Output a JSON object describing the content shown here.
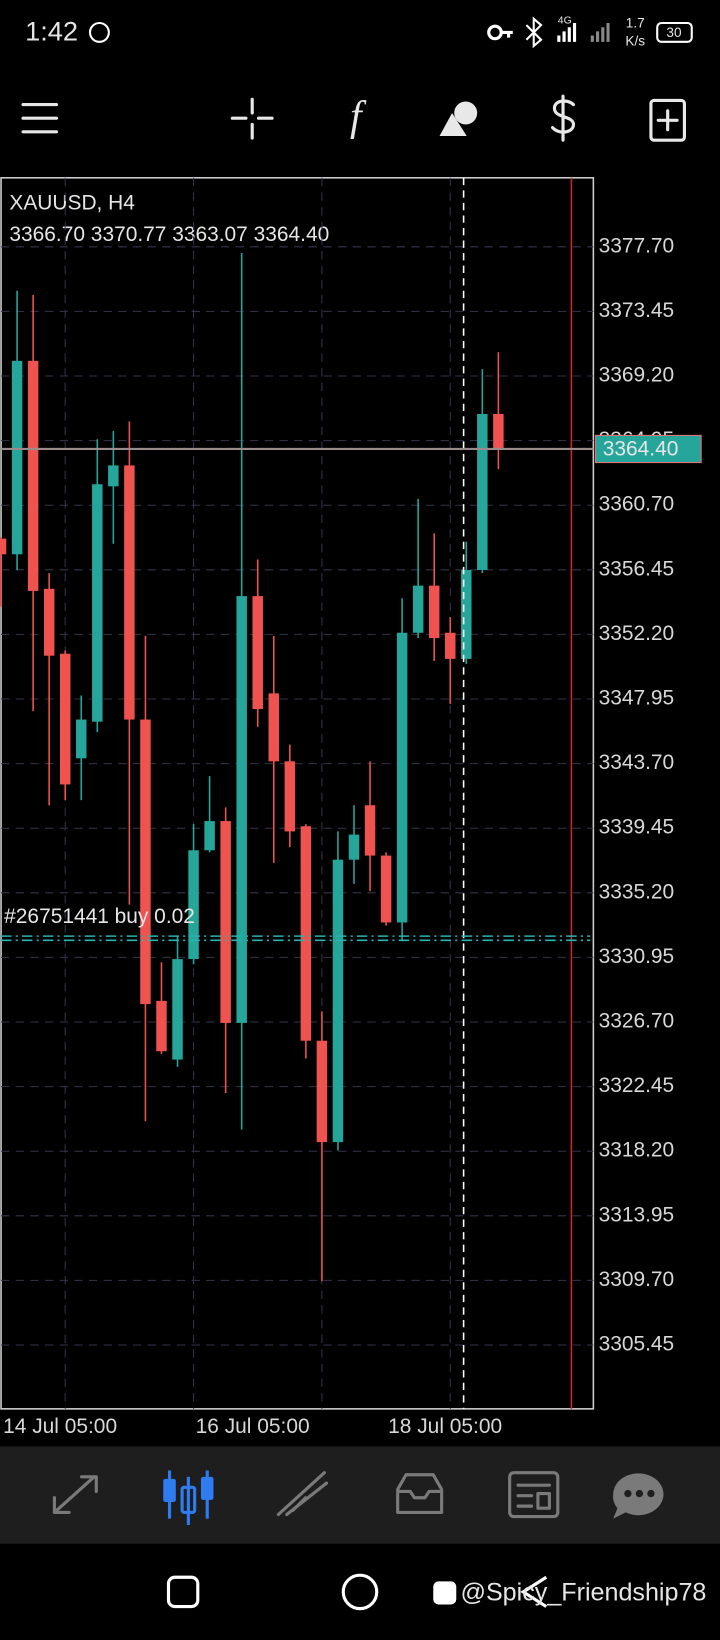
{
  "status_bar": {
    "time": "1:42",
    "network": "4G",
    "speed": "1.7",
    "speed_unit": "K/s",
    "battery": "30"
  },
  "chart": {
    "type": "candlestick",
    "symbol": "XAUUSD, H4",
    "ohlc_info": "3366.70 3370.77 3363.07 3364.40",
    "categories": [
      "14 Jul 05:00",
      null,
      null,
      null,
      null,
      null,
      null,
      null,
      null,
      null,
      null,
      null,
      "16 Jul 05:00",
      null,
      null,
      null,
      null,
      null,
      null,
      null,
      null,
      null,
      null,
      null,
      "18 Jul 05:00",
      null,
      null,
      null,
      null,
      null,
      null,
      null
    ],
    "open": [
      3358.5,
      3357.47,
      3370.2,
      3355.2,
      3350.93,
      3344.05,
      3346.46,
      3361.94,
      3363.32,
      3346.6,
      3328.09,
      3324.23,
      3330.84,
      3338.0,
      3339.92,
      3326.64,
      3354.72,
      3348.32,
      3343.85,
      3339.58,
      3325.47,
      3318.8,
      3337.38,
      3340.96,
      3337.65,
      3333.25,
      3352.31,
      3355.41,
      3352.31,
      3350.59,
      3356.44,
      3366.7
    ],
    "high": [
      3358.6,
      3374.81,
      3374.53,
      3356.23,
      3351.14,
      3348.18,
      3365.04,
      3365.59,
      3366.21,
      3352.1,
      3330.63,
      3332.35,
      3339.72,
      3342.88,
      3340.82,
      3377.29,
      3357.13,
      3352.1,
      3344.95,
      3339.72,
      3327.4,
      3339.24,
      3340.96,
      3343.85,
      3337.86,
      3354.58,
      3361.12,
      3358.85,
      3353.34,
      3358.3,
      3369.65,
      3370.77
    ],
    "low": [
      3354.03,
      3356.44,
      3347.15,
      3340.96,
      3341.3,
      3341.3,
      3345.77,
      3358.16,
      3334.42,
      3320.17,
      3324.6,
      3323.75,
      3330.5,
      3337.86,
      3322.03,
      3319.62,
      3346.12,
      3337.17,
      3338.2,
      3324.3,
      3309.65,
      3318.25,
      3335.79,
      3335.31,
      3333.04,
      3332.01,
      3351.96,
      3350.45,
      3347.63,
      3350.25,
      3356.23,
      3363.07
    ],
    "close": [
      3357.47,
      3370.2,
      3355.06,
      3350.8,
      3342.33,
      3346.6,
      3362.08,
      3363.32,
      3346.6,
      3327.88,
      3324.78,
      3330.84,
      3338.0,
      3339.92,
      3326.64,
      3354.72,
      3347.29,
      3343.85,
      3339.24,
      3325.47,
      3318.8,
      3337.38,
      3339.03,
      3337.65,
      3333.25,
      3352.31,
      3355.41,
      3351.96,
      3350.59,
      3356.44,
      3366.7,
      3364.4
    ],
    "colors": {
      "up": "#26a69a",
      "down": "#ef5350"
    },
    "ylim": [
      3301.25,
      3382.24
    ],
    "yticks": [
      {
        "value": 3377.7,
        "label": "3377.70"
      },
      3373.45,
      {
        "value": 3369.2,
        "label": "3369.20"
      },
      3364.95,
      {
        "value": 3360.7,
        "label": "3360.70"
      },
      3356.45,
      {
        "value": 3352.2,
        "label": "3352.20"
      },
      3347.95,
      {
        "value": 3343.7,
        "label": "3343.70"
      },
      3339.45,
      {
        "value": 3335.2,
        "label": "3335.20"
      },
      3330.95,
      {
        "value": 3326.7,
        "label": "3326.70"
      },
      3322.45,
      {
        "value": 3318.2,
        "label": "3318.20"
      },
      3313.95,
      {
        "value": 3309.7,
        "label": "3309.70"
      },
      3305.45
    ],
    "grid": true,
    "price_line": {
      "value": 3364.4,
      "label": "3364.40"
    },
    "order_line": {
      "value": 3332.35,
      "label": "#26751441 buy 0.02"
    }
  },
  "watermark": "@Spicy_Friendship78"
}
